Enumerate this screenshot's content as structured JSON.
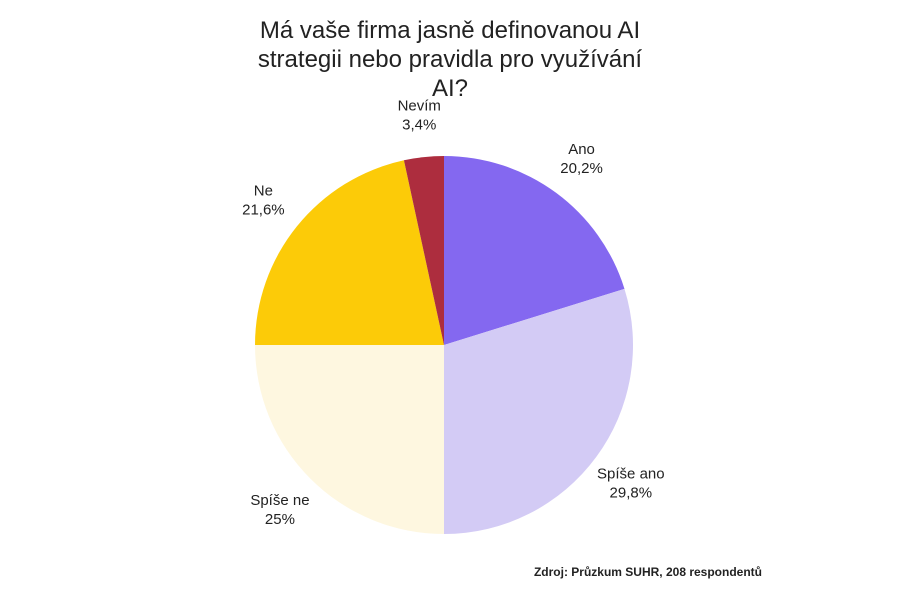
{
  "chart_data": {
    "type": "pie",
    "title": "Má vaše firma jasně definovanou AI strategii nebo pravidla pro využívání AI?",
    "unit": "%",
    "slices": [
      {
        "label": "Ano",
        "value": 20.2,
        "value_label": "20,2%",
        "color": "#8468f0"
      },
      {
        "label": "Spíše ano",
        "value": 29.8,
        "value_label": "29,8%",
        "color": "#d3cbf5"
      },
      {
        "label": "Spíše ne",
        "value": 25,
        "value_label": "25%",
        "color": "#fef7e0"
      },
      {
        "label": "Ne",
        "value": 21.6,
        "value_label": "21,6%",
        "color": "#fccb08"
      },
      {
        "label": "Nevím",
        "value": 3.4,
        "value_label": "3,4%",
        "color": "#ad2d3e"
      }
    ],
    "start_angle": "12 o'clock",
    "direction": "clockwise",
    "legend": "none"
  },
  "source": "Zdroj: Průzkum SUHR, 208 respondentů"
}
